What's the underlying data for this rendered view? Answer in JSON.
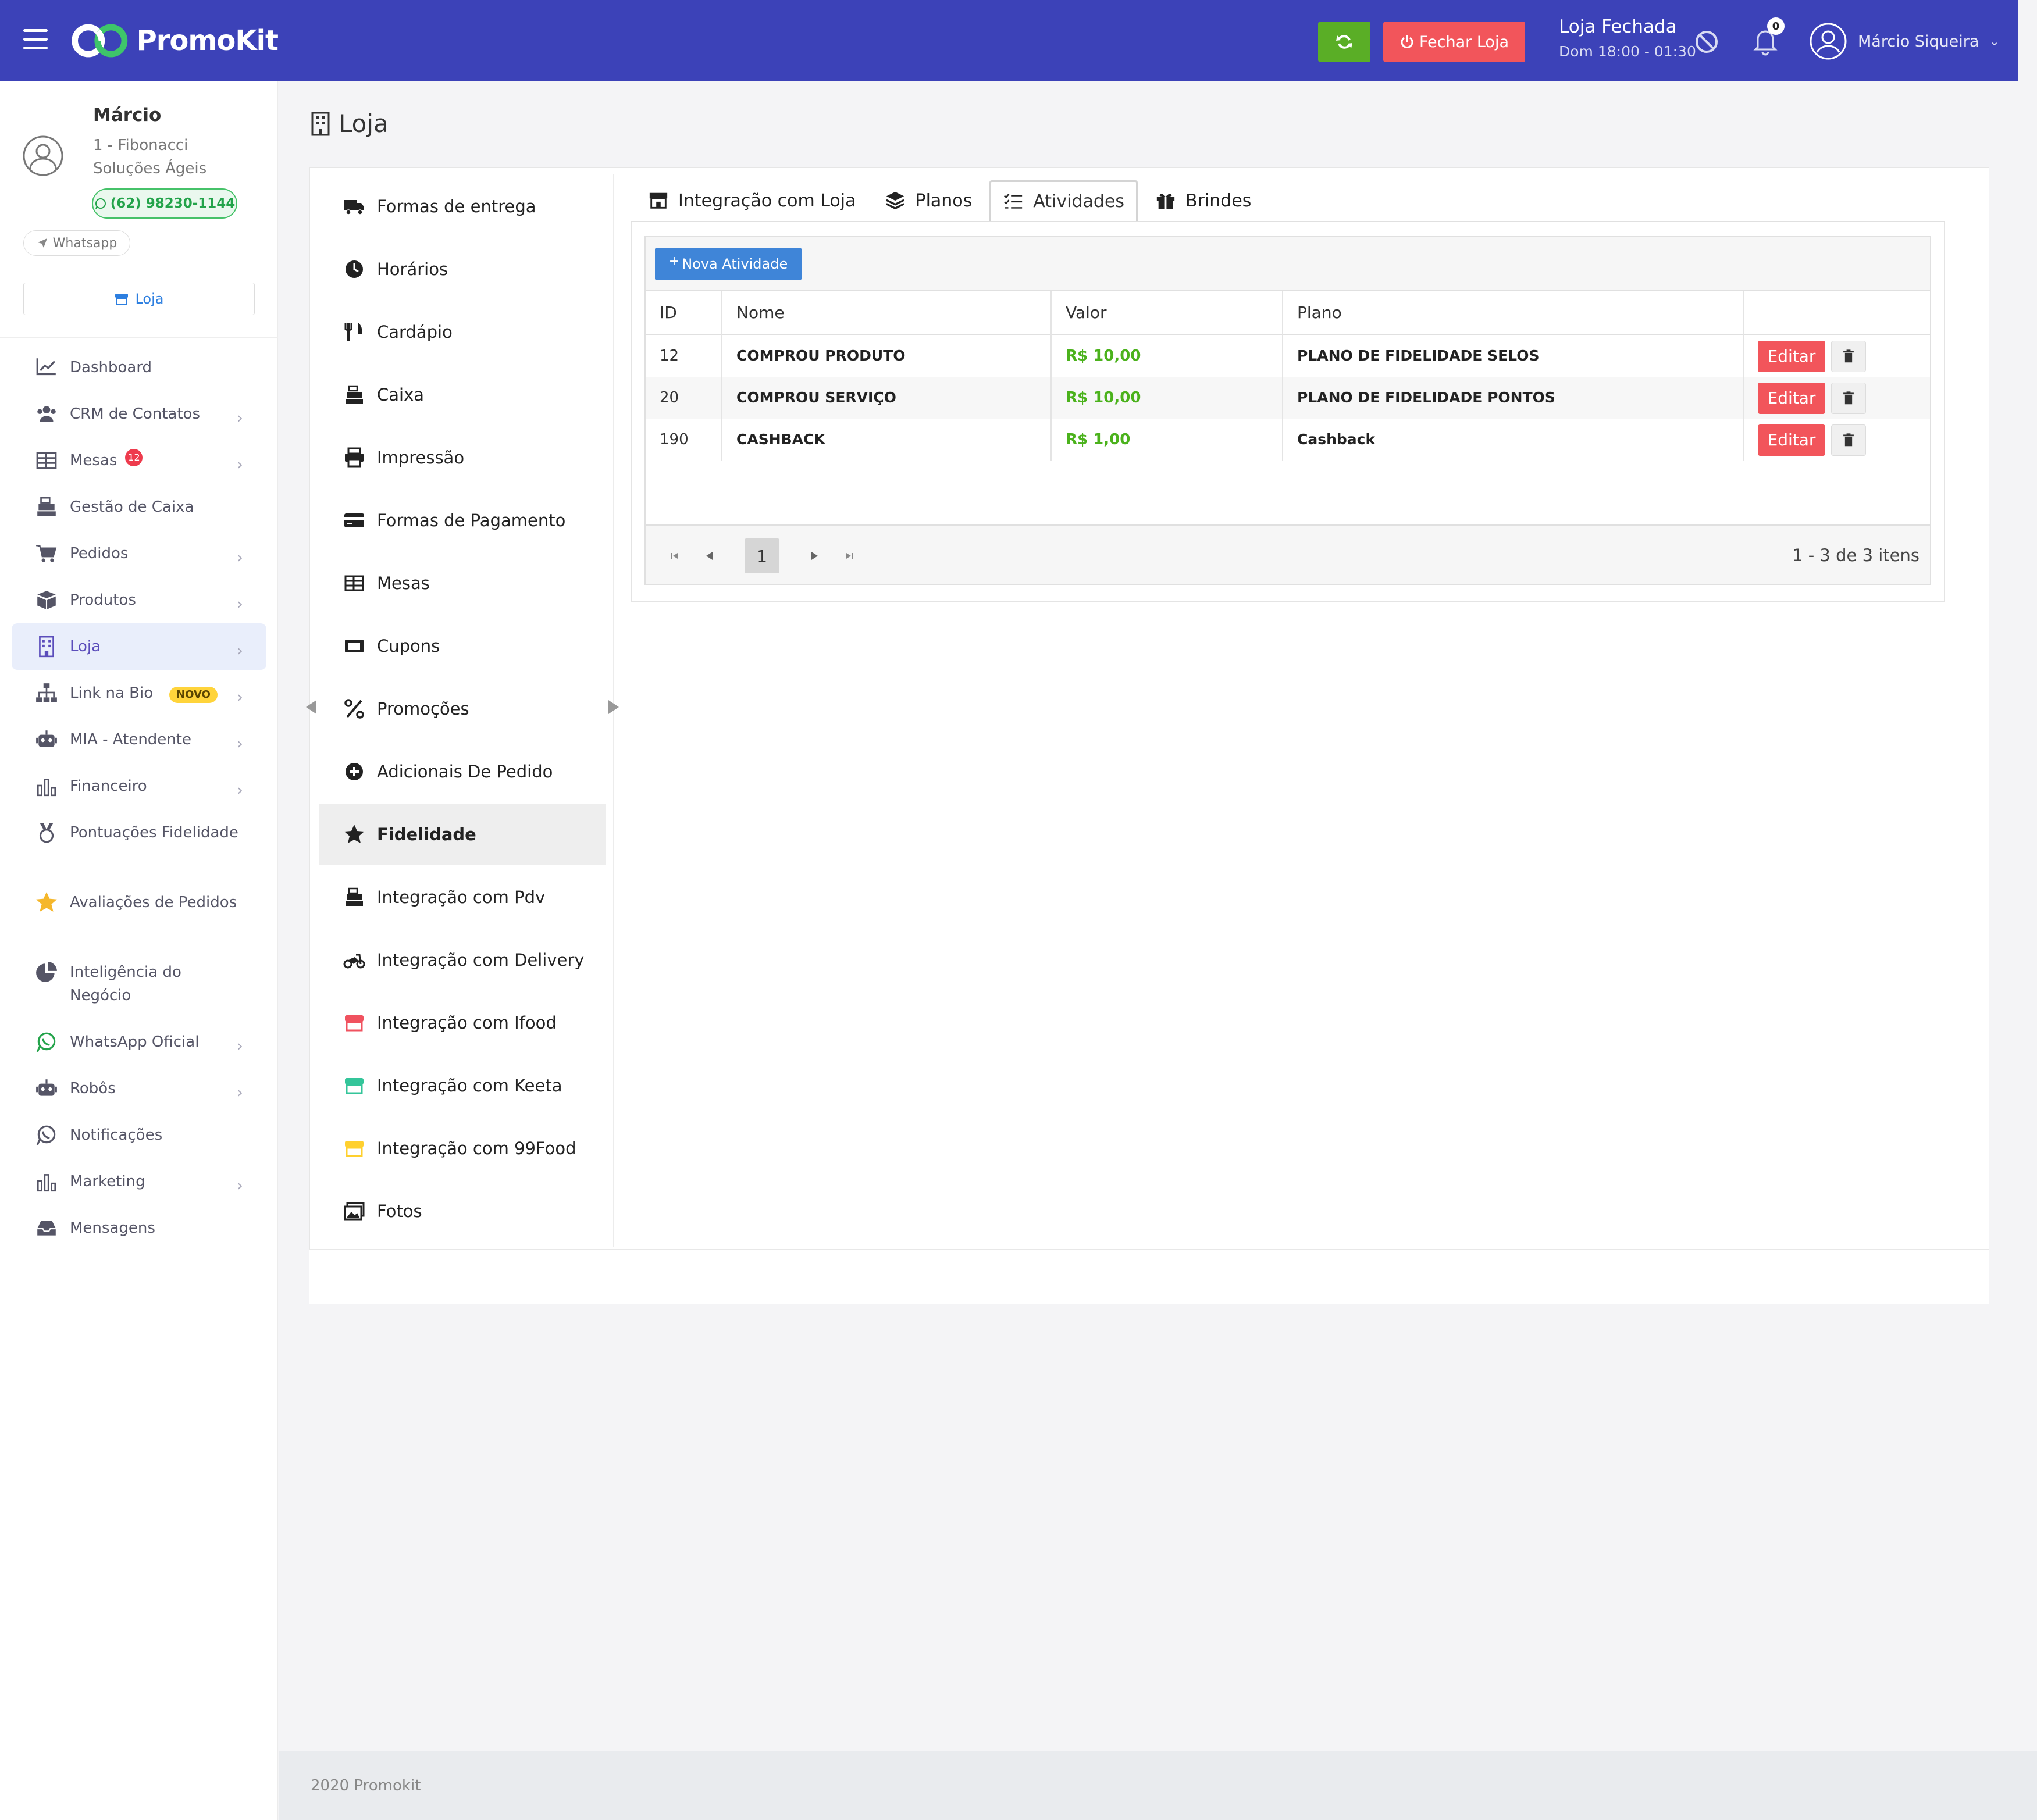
{
  "app": {
    "name": "PromoKit"
  },
  "header": {
    "close_store_label": "Fechar Loja",
    "store_status": "Loja Fechada",
    "store_hours": "Dom 18:00 - 01:30",
    "notifications_count": "0",
    "user_name": "Márcio Siqueira",
    "colors": {
      "bar": "#3c42b8",
      "refresh": "#5aae26",
      "close": "#f2555b"
    }
  },
  "sidebar": {
    "user_name": "Márcio",
    "company": "1 - Fibonacci Soluções Ágeis",
    "phone": "(62) 98230-1144",
    "whatsapp_label": "Whatsapp",
    "store_button_label": "Loja",
    "menu": [
      {
        "label": "Dashboard",
        "icon": "chart-line-icon",
        "chevron": false
      },
      {
        "label": "CRM de Contatos",
        "icon": "users-icon",
        "chevron": true
      },
      {
        "label": "Mesas",
        "icon": "table-icon",
        "chevron": true,
        "badge": "12"
      },
      {
        "label": "Gestão de Caixa",
        "icon": "cash-register-icon",
        "chevron": false
      },
      {
        "label": "Pedidos",
        "icon": "cart-icon",
        "chevron": true
      },
      {
        "label": "Produtos",
        "icon": "box-icon",
        "chevron": true
      },
      {
        "label": "Loja",
        "icon": "building-icon",
        "chevron": true,
        "active": true
      },
      {
        "label": "Link na Bio",
        "icon": "sitemap-icon",
        "chevron": true,
        "tag": "NOVO"
      },
      {
        "label": "MIA - Atendente",
        "icon": "robot-icon",
        "chevron": true
      },
      {
        "label": "Financeiro",
        "icon": "bar-chart-icon",
        "chevron": true
      },
      {
        "label": "Pontuações Fidelidade",
        "icon": "medal-icon",
        "chevron": false,
        "two_lines": true
      },
      {
        "label": "Avaliações de Pedidos",
        "icon": "star-icon",
        "chevron": false,
        "two_lines": true
      },
      {
        "label": "Inteligência do Negócio",
        "icon": "pie-chart-icon",
        "chevron": false,
        "two_lines": true
      },
      {
        "label": "WhatsApp Oficial",
        "icon": "whatsapp-icon",
        "chevron": true
      },
      {
        "label": "Robôs",
        "icon": "robot-icon",
        "chevron": true
      },
      {
        "label": "Notificações",
        "icon": "whatsapp-icon",
        "chevron": false
      },
      {
        "label": "Marketing",
        "icon": "bar-chart-icon",
        "chevron": true
      },
      {
        "label": "Mensagens",
        "icon": "inbox-icon",
        "chevron": false
      }
    ]
  },
  "page": {
    "title": "Loja"
  },
  "settings_nav": [
    {
      "label": "Formas de entrega",
      "icon": "truck-icon"
    },
    {
      "label": "Horários",
      "icon": "clock-icon"
    },
    {
      "label": "Cardápio",
      "icon": "utensils-icon"
    },
    {
      "label": "Caixa",
      "icon": "cash-register-icon"
    },
    {
      "label": "Impressão",
      "icon": "printer-icon"
    },
    {
      "label": "Formas de Pagamento",
      "icon": "credit-card-icon"
    },
    {
      "label": "Mesas",
      "icon": "table-icon"
    },
    {
      "label": "Cupons",
      "icon": "ticket-icon"
    },
    {
      "label": "Promoções",
      "icon": "percent-icon"
    },
    {
      "label": "Adicionais De Pedido",
      "icon": "plus-circle-icon"
    },
    {
      "label": "Fidelidade",
      "icon": "star-icon",
      "active": true
    },
    {
      "label": "Integração com Pdv",
      "icon": "cash-register-icon"
    },
    {
      "label": "Integração com Delivery",
      "icon": "motorcycle-icon"
    },
    {
      "label": "Integração com Ifood",
      "icon": "store-red-icon"
    },
    {
      "label": "Integração com Keeta",
      "icon": "store-green-icon"
    },
    {
      "label": "Integração com 99Food",
      "icon": "store-yellow-icon"
    },
    {
      "label": "Fotos",
      "icon": "images-icon"
    }
  ],
  "tabs": [
    {
      "label": "Integração com Loja",
      "icon": "store-icon"
    },
    {
      "label": "Planos",
      "icon": "layers-icon"
    },
    {
      "label": "Atividades",
      "icon": "list-check-icon",
      "active": true
    },
    {
      "label": "Brindes",
      "icon": "gift-icon"
    }
  ],
  "grid": {
    "new_button_label": "Nova Atividade",
    "columns": [
      "ID",
      "Nome",
      "Valor",
      "Plano"
    ],
    "rows": [
      {
        "id": "12",
        "nome": "COMPROU PRODUTO",
        "valor": "R$ 10,00",
        "plano": "PLANO DE FIDELIDADE SELOS"
      },
      {
        "id": "20",
        "nome": "COMPROU SERVIÇO",
        "valor": "R$ 10,00",
        "plano": "PLANO DE FIDELIDADE PONTOS"
      },
      {
        "id": "190",
        "nome": "CASHBACK",
        "valor": "R$ 1,00",
        "plano": "Cashback"
      }
    ],
    "edit_label": "Editar",
    "current_page": "1",
    "pager_info": "1 - 3 de 3 itens"
  },
  "footer": {
    "text": "2020 Promokit"
  }
}
